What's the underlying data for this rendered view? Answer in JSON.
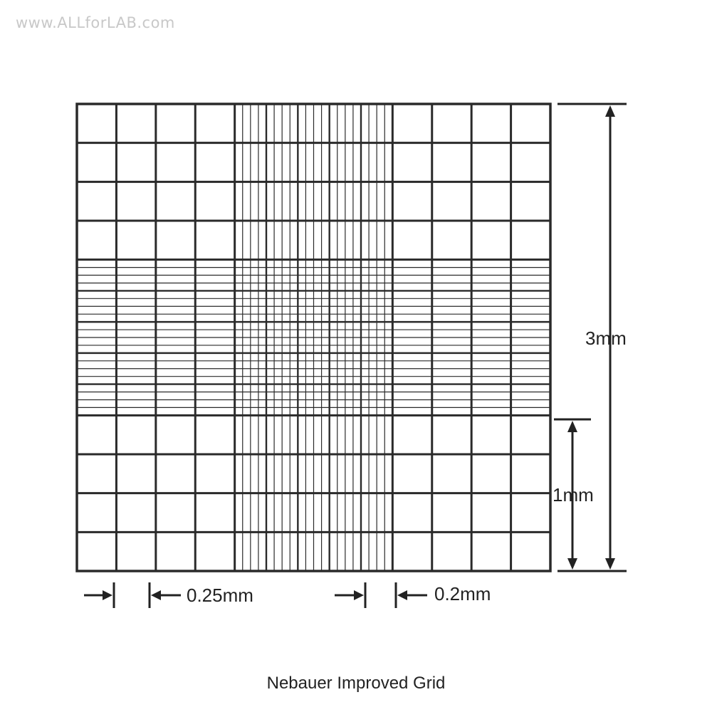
{
  "watermark": "www.ALLforLAB.com",
  "caption": "Nebauer Improved Grid",
  "dimensions": {
    "total_height": "3mm",
    "square_height": "1mm",
    "small_spacing": "0.25mm",
    "fine_spacing": "0.2mm"
  },
  "grid": {
    "total_mm": 3,
    "square_mm": 1,
    "corner_line_spacing_mm": 0.25,
    "center_line_spacing_mm": 0.2,
    "center_fine_line_spacing_mm": 0.05,
    "line_color": "#2a2a2a"
  }
}
